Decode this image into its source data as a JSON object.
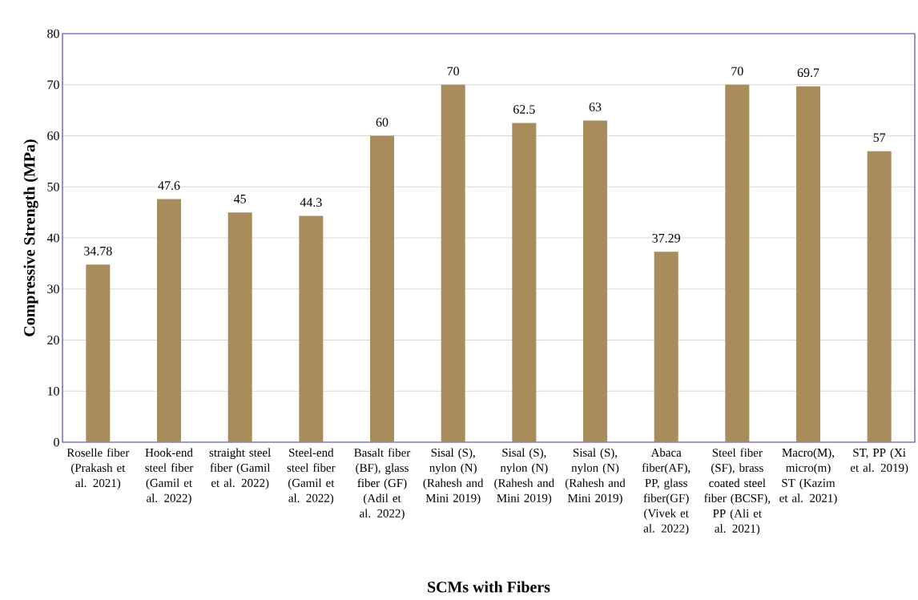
{
  "chart_data": {
    "type": "bar",
    "xlabel": "SCMs with Fibers",
    "ylabel": "Compressive Strength (MPa)",
    "categories": [
      "Roselle fiber (Prakash et al. 2021)",
      "Hook-end steel fiber (Gamil et al. 2022)",
      "straight steel fiber (Gamil et al. 2022)",
      "Steel-end steel fiber (Gamil et al. 2022)",
      "Basalt fiber (BF), glass fiber (GF) (Adil et al. 2022)",
      "Sisal (S), nylon (N) (Rahesh and Mini 2019)",
      "Sisal (S), nylon (N) (Rahesh and Mini 2019)",
      "Sisal (S), nylon (N) (Rahesh and Mini 2019)",
      "Abaca fiber(AF), PP, glass fiber(GF) (Vivek et al. 2022)",
      "Steel fiber (SF), brass coated steel fiber (BCSF), PP (Ali et al. 2021)",
      "Macro(M), micro(m) ST (Kazim et al. 2021)",
      "ST, PP (Xi et al. 2019)"
    ],
    "values": [
      34.78,
      47.6,
      45,
      44.3,
      60,
      70,
      62.5,
      63,
      37.29,
      70,
      69.7,
      57
    ],
    "color": "#a88c5c",
    "data_labels": true,
    "ylim": [
      0,
      80
    ],
    "yticks": [
      0,
      10,
      20,
      30,
      40,
      50,
      60,
      70,
      80
    ],
    "grid": "y"
  }
}
